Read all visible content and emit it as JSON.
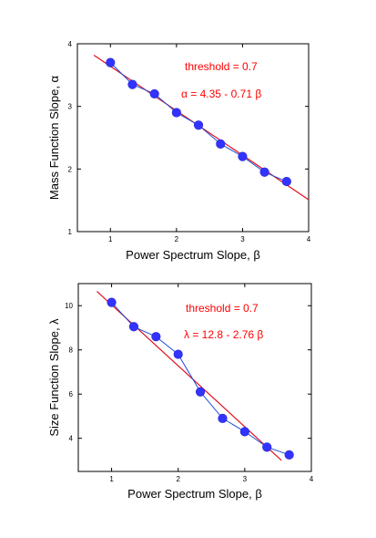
{
  "colors": {
    "points": "#3333ff",
    "connect_line": "#1f4fd8",
    "fit_line": "#e0101e",
    "annotation": "#ff0000",
    "axis": "#000000"
  },
  "chart_data": [
    {
      "type": "scatter",
      "title": "",
      "xlabel": "Power Spectrum Slope, β",
      "ylabel": "Mass Function Slope, α",
      "xlim": [
        0.5,
        4
      ],
      "ylim": [
        1,
        4
      ],
      "xticks": [
        "1",
        "2",
        "3",
        "4"
      ],
      "yticks": [
        "1",
        "2",
        "3",
        "4"
      ],
      "x": [
        1.0,
        1.333,
        1.667,
        2.0,
        2.333,
        2.667,
        3.0,
        3.333,
        3.667
      ],
      "y": [
        3.7,
        3.35,
        3.2,
        2.9,
        2.7,
        2.4,
        2.2,
        1.95,
        1.8
      ],
      "fit": {
        "intercept": 4.35,
        "slope": -0.71,
        "x_range": [
          0.75,
          4.0
        ]
      },
      "annotations": [
        "threshold = 0.7",
        "α = 4.35 - 0.71 β"
      ],
      "grid": false
    },
    {
      "type": "scatter",
      "title": "",
      "xlabel": "Power Spectrum Slope, β",
      "ylabel": "Size Function Slope, λ",
      "xlim": [
        0.5,
        4
      ],
      "ylim": [
        2.5,
        11
      ],
      "xticks": [
        "1",
        "2",
        "3",
        "4"
      ],
      "yticks": [
        "4",
        "6",
        "8",
        "10"
      ],
      "x": [
        1.0,
        1.333,
        1.667,
        2.0,
        2.333,
        2.667,
        3.0,
        3.333,
        3.667
      ],
      "y": [
        10.15,
        9.05,
        8.6,
        7.8,
        6.1,
        4.9,
        4.3,
        3.6,
        3.25
      ],
      "fit": {
        "intercept": 12.8,
        "slope": -2.76,
        "x_range": [
          0.78,
          3.55
        ]
      },
      "annotations": [
        "threshold = 0.7",
        "λ = 12.8 - 2.76 β"
      ],
      "grid": false
    }
  ]
}
